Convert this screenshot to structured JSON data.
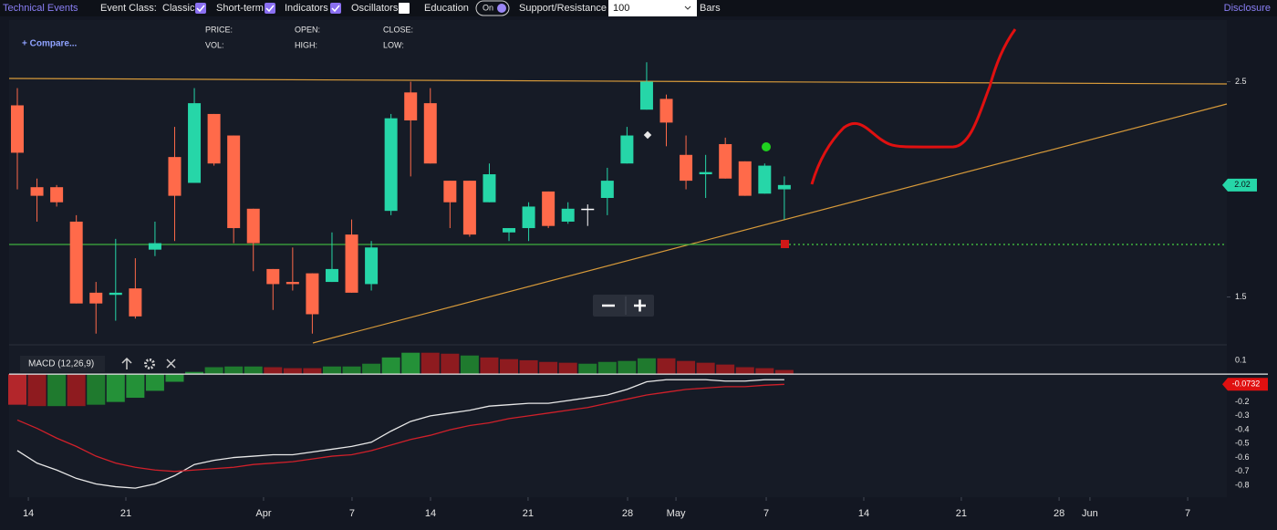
{
  "toolbar": {
    "technical_events": "Technical Events",
    "event_class": "Event Class:",
    "classic": "Classic",
    "short_term": "Short-term",
    "indicators": "Indicators",
    "oscillators": "Oscillators",
    "education": "Education",
    "toggle": "On",
    "support_resistance": "Support/Resistance",
    "bars_value": "100",
    "bars": "Bars",
    "disclosure": "Disclosure"
  },
  "chart_header": {
    "compare": "+ Compare...",
    "price": "PRICE:",
    "vol": "VOL:",
    "open": "OPEN:",
    "high": "HIGH:",
    "close": "CLOSE:",
    "low": "LOW:"
  },
  "chart_data": [
    {
      "type": "candlestick",
      "x": [
        0,
        1,
        2,
        3,
        4,
        5,
        6,
        7,
        8,
        9,
        10,
        11,
        12,
        13,
        14,
        15,
        16,
        17,
        18,
        19,
        20,
        21,
        22,
        23,
        24,
        25,
        26,
        27,
        28,
        29,
        30,
        31,
        32,
        33,
        34,
        35,
        36,
        37,
        38,
        39
      ],
      "open": [
        2.39,
        2.01,
        2.01,
        1.85,
        1.52,
        1.51,
        1.54,
        1.72,
        2.15,
        2.03,
        2.35,
        2.25,
        1.91,
        1.63,
        1.57,
        1.61,
        1.57,
        1.79,
        1.56,
        1.9,
        2.45,
        2.4,
        2.04,
        2.04,
        1.94,
        1.8,
        1.82,
        1.99,
        1.85,
        1.91,
        1.96,
        2.12,
        2.37,
        2.42,
        2.16,
        2.07,
        2.21,
        2.13,
        1.98,
        2.0
      ],
      "high": [
        2.47,
        2.05,
        2.02,
        1.88,
        1.57,
        1.77,
        1.68,
        1.85,
        2.29,
        2.47,
        2.35,
        2.25,
        1.91,
        1.63,
        1.73,
        1.61,
        1.8,
        1.86,
        1.76,
        2.35,
        2.5,
        2.47,
        2.04,
        2.04,
        2.12,
        1.82,
        1.94,
        1.99,
        1.94,
        1.93,
        2.1,
        2.29,
        2.59,
        2.44,
        2.25,
        2.16,
        2.24,
        2.13,
        2.12,
        2.06
      ],
      "low": [
        2.0,
        1.85,
        1.92,
        1.47,
        1.33,
        1.39,
        1.4,
        1.69,
        1.76,
        2.03,
        2.11,
        1.75,
        1.62,
        1.44,
        1.53,
        1.33,
        1.57,
        1.52,
        1.53,
        1.88,
        2.06,
        2.12,
        1.82,
        1.78,
        1.94,
        1.76,
        1.76,
        1.82,
        1.84,
        1.83,
        1.88,
        2.12,
        2.37,
        2.2,
        2.0,
        1.96,
        2.05,
        1.97,
        1.98,
        1.86
      ],
      "close": [
        2.17,
        1.97,
        1.94,
        1.47,
        1.47,
        1.52,
        1.41,
        1.75,
        1.97,
        2.4,
        2.12,
        1.82,
        1.75,
        1.56,
        1.56,
        1.42,
        1.63,
        1.52,
        1.73,
        2.33,
        2.32,
        2.12,
        1.94,
        1.79,
        2.07,
        1.82,
        1.92,
        1.83,
        1.91,
        1.91,
        2.04,
        2.25,
        2.5,
        2.31,
        2.04,
        2.08,
        2.05,
        1.97,
        2.11,
        2.02
      ],
      "up_color": "#26d6a8",
      "down_color": "#ff6a4a",
      "doji_color": "#ffffff",
      "xlim": [
        -0.417,
        61.5
      ],
      "xticks": [
        {
          "value": 0.56,
          "label": "14"
        },
        {
          "value": 5.52,
          "label": "21"
        },
        {
          "value": 12.52,
          "label": "Apr"
        },
        {
          "value": 17.02,
          "label": "7"
        },
        {
          "value": 21.01,
          "label": "14"
        },
        {
          "value": 25.97,
          "label": "21"
        },
        {
          "value": 31.03,
          "label": "28"
        },
        {
          "value": 33.49,
          "label": "May"
        },
        {
          "value": 38.08,
          "label": "7"
        },
        {
          "value": 43.04,
          "label": "14"
        },
        {
          "value": 48.0,
          "label": "21"
        },
        {
          "value": 52.97,
          "label": "28"
        },
        {
          "value": 54.54,
          "label": "Jun"
        },
        {
          "value": 59.51,
          "label": "7"
        }
      ],
      "ylim": [
        1.278,
        2.786
      ],
      "yticks": [
        1.5,
        2.5
      ]
    },
    {
      "type": "macd",
      "title": "MACD (12,26,9)",
      "series": [
        {
          "type": "bar",
          "values": [
            -0.22,
            -0.23,
            -0.23,
            -0.23,
            -0.22,
            -0.2,
            -0.17,
            -0.12,
            -0.055,
            0.016,
            0.05,
            0.055,
            0.055,
            0.05,
            0.043,
            0.043,
            0.055,
            0.055,
            0.075,
            0.12,
            0.154,
            0.154,
            0.147,
            0.134,
            0.12,
            0.108,
            0.1,
            0.088,
            0.082,
            0.075,
            0.088,
            0.095,
            0.114,
            0.114,
            0.095,
            0.082,
            0.069,
            0.05,
            0.043,
            0.03
          ],
          "colors": [
            "#b3262b",
            "#8e1b1f",
            "#1f7a2e",
            "#8e1b1f",
            "#1f7a2e",
            "#249138",
            "#249138",
            "#249138",
            "#249138",
            "#249138",
            "#1f7a2e",
            "#1f7a2e",
            "#1f7a2e",
            "#8e1b1f",
            "#8e1b1f",
            "#8e1b1f",
            "#1f7a2e",
            "#1f7a2e",
            "#1f7a2e",
            "#249138",
            "#249138",
            "#8e1b1f",
            "#8e1b1f",
            "#1f7a2e",
            "#8e1b1f",
            "#8e1b1f",
            "#8e1b1f",
            "#8e1b1f",
            "#8e1b1f",
            "#1f7a2e",
            "#1f7a2e",
            "#1f7a2e",
            "#1f7a2e",
            "#8e1b1f",
            "#8e1b1f",
            "#8e1b1f",
            "#8e1b1f",
            "#8e1b1f",
            "#8e1b1f",
            "#8e1b1f"
          ]
        },
        {
          "type": "line",
          "color": "#e8e8e8",
          "values": [
            -0.55,
            -0.64,
            -0.69,
            -0.75,
            -0.79,
            -0.81,
            -0.82,
            -0.79,
            -0.73,
            -0.65,
            -0.62,
            -0.6,
            -0.59,
            -0.58,
            -0.58,
            -0.56,
            -0.54,
            -0.52,
            -0.49,
            -0.41,
            -0.34,
            -0.3,
            -0.28,
            -0.26,
            -0.23,
            -0.22,
            -0.21,
            -0.21,
            -0.19,
            -0.17,
            -0.15,
            -0.11,
            -0.055,
            -0.04,
            -0.04,
            -0.04,
            -0.05,
            -0.05,
            -0.04,
            -0.04
          ]
        },
        {
          "type": "line",
          "color": "#d0202a",
          "values": [
            -0.33,
            -0.39,
            -0.46,
            -0.52,
            -0.59,
            -0.64,
            -0.67,
            -0.69,
            -0.7,
            -0.69,
            -0.68,
            -0.67,
            -0.65,
            -0.64,
            -0.63,
            -0.61,
            -0.59,
            -0.58,
            -0.55,
            -0.51,
            -0.47,
            -0.44,
            -0.4,
            -0.37,
            -0.35,
            -0.32,
            -0.3,
            -0.28,
            -0.26,
            -0.24,
            -0.21,
            -0.18,
            -0.15,
            -0.13,
            -0.11,
            -0.1,
            -0.09,
            -0.09,
            -0.08,
            -0.0732
          ]
        }
      ],
      "ylim": [
        -0.885,
        0.165
      ],
      "yticks": [
        0.1,
        -0.2,
        -0.3,
        -0.4,
        -0.5,
        -0.6,
        -0.7,
        -0.8
      ]
    }
  ]
}
